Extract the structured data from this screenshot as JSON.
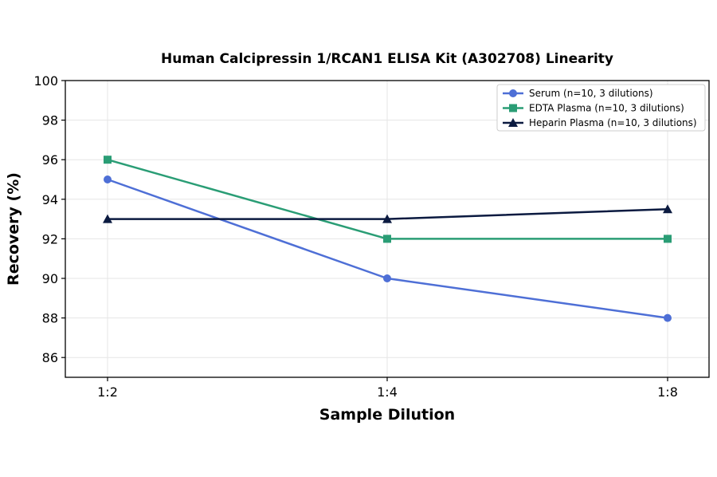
{
  "chart_data": {
    "type": "line",
    "title": "Human Calcipressin 1/RCAN1 ELISA Kit (A302708) Linearity",
    "xlabel": "Sample Dilution",
    "ylabel": "Recovery (%)",
    "categories": [
      "1:2",
      "1:4",
      "1:8"
    ],
    "ylim": [
      85,
      100
    ],
    "yticks": [
      86,
      88,
      90,
      92,
      94,
      96,
      98,
      100
    ],
    "grid": true,
    "legend_position": "top-right",
    "series": [
      {
        "name": "Serum (n=10, 3 dilutions)",
        "values": [
          95,
          90,
          88
        ],
        "color": "#4e6fd6",
        "marker": "circle"
      },
      {
        "name": "EDTA Plasma (n=10, 3 dilutions)",
        "values": [
          96,
          92,
          92
        ],
        "color": "#2a9d75",
        "marker": "square"
      },
      {
        "name": "Heparin Plasma (n=10, 3 dilutions)",
        "values": [
          93,
          93,
          93.5
        ],
        "color": "#0b1a40",
        "marker": "triangle"
      }
    ]
  }
}
